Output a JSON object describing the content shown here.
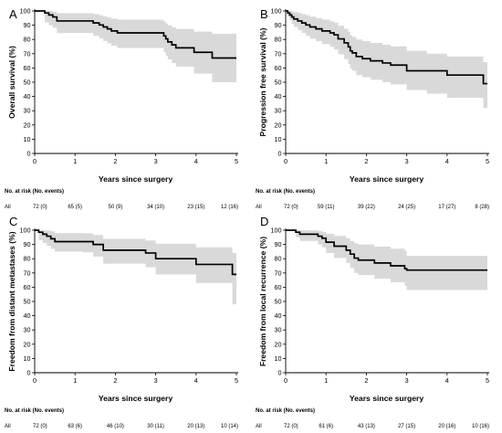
{
  "chart_data": [
    {
      "type": "line",
      "panel": "A",
      "title": "",
      "xlabel": "Years since surgery",
      "ylabel": "Overall survival (%)",
      "xlim": [
        0,
        5
      ],
      "ylim": [
        0,
        100
      ],
      "xticks": [
        "0",
        "1",
        "2",
        "3",
        "4",
        "5"
      ],
      "yticks": [
        "0",
        "10",
        "20",
        "30",
        "40",
        "50",
        "60",
        "70",
        "80",
        "90",
        "100"
      ],
      "series": [
        {
          "style": "step",
          "x": [
            0,
            0.25,
            0.35,
            0.45,
            0.55,
            1.45,
            1.6,
            1.7,
            1.8,
            1.9,
            2.05,
            3.2,
            3.25,
            3.3,
            3.4,
            3.5,
            3.95,
            4.4,
            5.0
          ],
          "y": [
            100,
            98.6,
            97.2,
            95.8,
            93.0,
            91.6,
            90.2,
            88.8,
            87.4,
            86.0,
            84.6,
            82.5,
            80.4,
            78.3,
            76.2,
            74.1,
            71.0,
            67.0,
            67.0
          ],
          "ci_upper": [
            100,
            100,
            100,
            99.5,
            98.5,
            97.8,
            97.0,
            96.2,
            95.4,
            94.6,
            93.8,
            92.5,
            91.2,
            89.9,
            88.6,
            87.3,
            85.5,
            84.0,
            84.0
          ],
          "ci_lower": [
            100,
            92.0,
            90.0,
            88.2,
            84.5,
            82.5,
            80.8,
            79.0,
            77.3,
            75.6,
            74.0,
            71.0,
            68.5,
            66.0,
            63.5,
            61.0,
            56.0,
            50.0,
            50.0
          ]
        }
      ],
      "risk_table": {
        "title": "No. at risk (No. events)",
        "row_label": "All",
        "values": [
          "72 (0)",
          "65 (5)",
          "50 (9)",
          "34 (10)",
          "23 (15)",
          "12 (16)"
        ]
      }
    },
    {
      "type": "line",
      "panel": "B",
      "title": "",
      "xlabel": "Years since surgery",
      "ylabel": "Progression free survival (%)",
      "xlim": [
        0,
        5
      ],
      "ylim": [
        0,
        100
      ],
      "xticks": [
        "0",
        "1",
        "2",
        "3",
        "4",
        "5"
      ],
      "yticks": [
        "0",
        "10",
        "20",
        "30",
        "40",
        "50",
        "60",
        "70",
        "80",
        "90",
        "100"
      ],
      "series": [
        {
          "style": "step",
          "x": [
            0,
            0.05,
            0.1,
            0.15,
            0.2,
            0.3,
            0.4,
            0.5,
            0.6,
            0.75,
            0.9,
            1.1,
            1.2,
            1.3,
            1.45,
            1.55,
            1.6,
            1.65,
            1.75,
            1.9,
            2.1,
            2.4,
            2.6,
            3.0,
            3.5,
            4.0,
            4.9,
            5.0
          ],
          "y": [
            100,
            98.6,
            97.2,
            95.8,
            94.4,
            93.0,
            91.6,
            90.2,
            88.8,
            87.4,
            86.0,
            84.6,
            83.2,
            80.4,
            77.6,
            74.8,
            72.0,
            70.6,
            68.0,
            66.5,
            65.0,
            63.5,
            62.0,
            58.0,
            58.0,
            55.0,
            49.0,
            49.0
          ],
          "ci_upper": [
            100,
            100,
            100,
            99.8,
            99.3,
            98.6,
            97.8,
            97.0,
            96.0,
            95.0,
            94.0,
            92.8,
            91.8,
            89.6,
            87.5,
            85.3,
            83.0,
            81.8,
            80.0,
            78.8,
            77.6,
            76.4,
            75.2,
            72.0,
            70.0,
            68.0,
            64.0,
            64.0
          ],
          "ci_lower": [
            100,
            96.0,
            93.5,
            91.0,
            88.8,
            86.6,
            84.6,
            82.6,
            80.6,
            78.8,
            76.8,
            74.8,
            73.0,
            69.6,
            66.2,
            62.8,
            59.5,
            58.0,
            55.0,
            53.5,
            51.8,
            50.0,
            48.5,
            44.5,
            42.0,
            39.0,
            32.0,
            32.0
          ]
        }
      ],
      "risk_table": {
        "title": "No. at risk (No. events)",
        "row_label": "All",
        "values": [
          "72 (0)",
          "59 (11)",
          "39 (22)",
          "24 (25)",
          "17 (27)",
          "8 (28)"
        ]
      }
    },
    {
      "type": "line",
      "panel": "C",
      "title": "",
      "xlabel": "Years since surgery",
      "ylabel": "Freedom from distant metastases (%)",
      "xlim": [
        0,
        5
      ],
      "ylim": [
        0,
        100
      ],
      "xticks": [
        "0",
        "1",
        "2",
        "3",
        "4",
        "5"
      ],
      "yticks": [
        "0",
        "10",
        "20",
        "30",
        "40",
        "50",
        "60",
        "70",
        "80",
        "90",
        "100"
      ],
      "series": [
        {
          "style": "step",
          "x": [
            0,
            0.1,
            0.2,
            0.3,
            0.4,
            0.5,
            1.2,
            1.45,
            1.7,
            2.75,
            3.0,
            4.0,
            4.9,
            5.0
          ],
          "y": [
            100,
            98.6,
            97.2,
            95.8,
            94.0,
            92.0,
            92.0,
            90.0,
            86.0,
            84.0,
            80.0,
            76.0,
            69.0,
            69.0
          ],
          "ci_upper": [
            100,
            100,
            100,
            99.8,
            99.2,
            98.0,
            97.8,
            96.6,
            94.0,
            92.8,
            90.5,
            88.0,
            84.0,
            84.0
          ],
          "ci_lower": [
            100,
            93.0,
            91.0,
            89.0,
            87.0,
            85.0,
            84.5,
            81.5,
            76.5,
            74.0,
            69.0,
            63.0,
            48.0,
            48.0
          ]
        }
      ],
      "risk_table": {
        "title": "No. at risk (No. events)",
        "row_label": "All",
        "values": [
          "72 (0)",
          "63 (6)",
          "46 (10)",
          "30 (11)",
          "20 (13)",
          "10 (14)"
        ]
      }
    },
    {
      "type": "line",
      "panel": "D",
      "title": "",
      "xlabel": "Years since surgery",
      "ylabel": "Freedom from local recurrence (%)",
      "xlim": [
        0,
        5
      ],
      "ylim": [
        0,
        100
      ],
      "xticks": [
        "0",
        "1",
        "2",
        "3",
        "4",
        "5"
      ],
      "yticks": [
        "0",
        "10",
        "20",
        "30",
        "40",
        "50",
        "60",
        "70",
        "80",
        "90",
        "100"
      ],
      "series": [
        {
          "style": "step",
          "x": [
            0,
            0.25,
            0.35,
            0.8,
            0.9,
            1.0,
            1.2,
            1.5,
            1.6,
            1.7,
            1.8,
            2.2,
            2.6,
            2.95,
            3.0,
            5.0
          ],
          "y": [
            100,
            98.6,
            97.2,
            95.8,
            94.4,
            91.6,
            88.8,
            86.0,
            83.2,
            80.4,
            79.0,
            77.0,
            75.0,
            73.0,
            72.0,
            72.0
          ],
          "ci_upper": [
            100,
            100,
            100,
            99.5,
            98.8,
            97.5,
            96.0,
            94.2,
            92.5,
            90.8,
            90.0,
            88.5,
            87.0,
            85.5,
            82.0,
            82.0
          ],
          "ci_lower": [
            100,
            95.0,
            92.5,
            90.0,
            88.0,
            84.0,
            80.5,
            77.0,
            73.5,
            70.0,
            68.5,
            66.0,
            63.5,
            61.0,
            58.0,
            58.0
          ]
        }
      ],
      "risk_table": {
        "title": "No. at risk (No. events)",
        "row_label": "All",
        "values": [
          "72 (0)",
          "61 (6)",
          "43 (13)",
          "27 (15)",
          "20 (16)",
          "10 (16)"
        ]
      }
    }
  ]
}
